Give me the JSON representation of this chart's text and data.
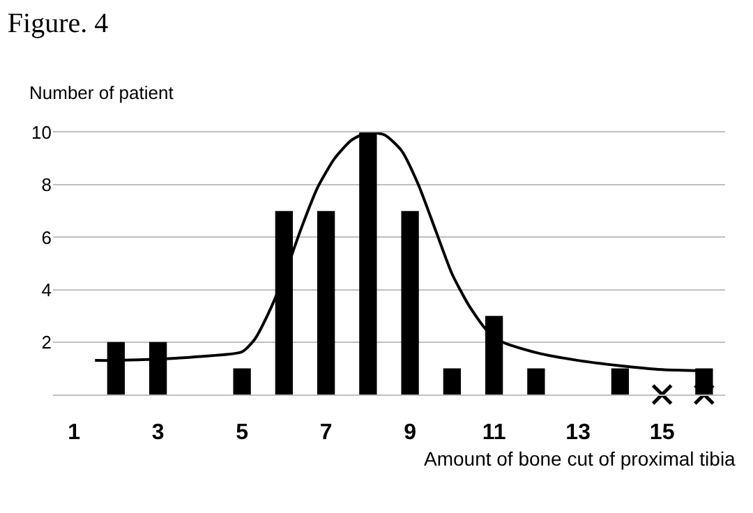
{
  "chart_data": {
    "type": "bar",
    "title": "Figure. 4",
    "ylabel": "Number of patient",
    "xlabel": "Amount of bone cut of proximal tibia",
    "x": [
      2,
      3,
      5,
      6,
      7,
      8,
      9,
      10,
      11,
      12,
      14,
      16
    ],
    "series": [
      {
        "color": "#000000",
        "values": [
          2,
          2,
          1,
          7,
          7,
          10,
          7,
          1,
          3,
          1,
          1,
          1
        ]
      },
      {
        "type": "line",
        "color": "#000000",
        "marker": "none",
        "line_style": "solid",
        "x": [
          1.5,
          2,
          3,
          4,
          5,
          5.3,
          5.6,
          6,
          6.4,
          6.8,
          7.2,
          7.6,
          8,
          8.4,
          8.8,
          9.2,
          9.6,
          10,
          10.4,
          10.8,
          11.2,
          12,
          13,
          14,
          15,
          16
        ],
        "values": [
          1.3,
          1.3,
          1.35,
          1.45,
          1.63,
          2.1,
          3,
          4.5,
          6.3,
          7.9,
          9,
          9.7,
          10,
          9.9,
          9.3,
          8,
          6.3,
          4.6,
          3.4,
          2.5,
          2,
          1.6,
          1.3,
          1.1,
          0.95,
          0.9
        ]
      },
      {
        "type": "scatter",
        "color": "#000000",
        "marker": "cross",
        "x": [
          15,
          16
        ],
        "values": [
          0,
          0
        ]
      }
    ],
    "xlim": [
      0.5,
      16.5
    ],
    "xticks": [
      1,
      3,
      5,
      7,
      9,
      11,
      13,
      15
    ],
    "ylim": [
      0,
      10
    ],
    "yticks": [
      2,
      4,
      6,
      8,
      10
    ],
    "grid": "y"
  }
}
